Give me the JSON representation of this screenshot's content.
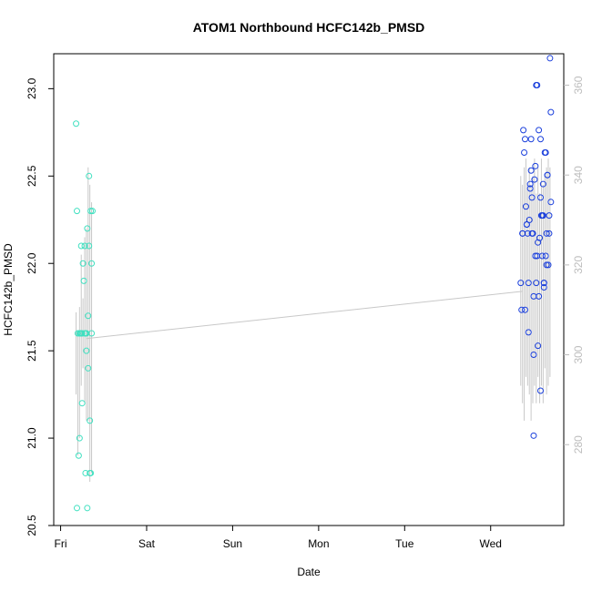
{
  "chart_data": {
    "type": "scatter",
    "title": "ATOM1 Northbound HCFC142b_PMSD",
    "xlabel": "Date",
    "ylabel": "HCFC142b_PMSD",
    "x_ticks": [
      "Fri",
      "Sat",
      "Sun",
      "Mon",
      "Tue",
      "Wed"
    ],
    "xlim": [
      -0.08,
      5.85
    ],
    "ylim": [
      20.5,
      23.2
    ],
    "y_ticks": [
      20.5,
      21.0,
      21.5,
      22.0,
      22.5,
      23.0
    ],
    "y2_ticks": [
      280,
      300,
      320,
      340,
      360
    ],
    "y2lim": [
      262,
      367
    ],
    "grid": false,
    "colors": {
      "series_early": "#40e0c0",
      "series_late": "#1a3fdc",
      "trend": "#c8c8c8",
      "right_axis": "#bdbdbd"
    },
    "series": [
      {
        "x": [
          0.18,
          0.19,
          0.2,
          0.21,
          0.22,
          0.23,
          0.24,
          0.25,
          0.26,
          0.27,
          0.28,
          0.29,
          0.3,
          0.31,
          0.32,
          0.33,
          0.34,
          0.19,
          0.22,
          0.25,
          0.28,
          0.31
        ],
        "y": [
          22.8,
          22.3,
          21.6,
          20.9,
          21.0,
          21.6,
          22.1,
          21.2,
          22.0,
          21.9,
          22.1,
          21.6,
          21.5,
          22.2,
          21.4,
          22.1,
          20.8,
          20.6,
          21.6,
          21.6,
          21.6,
          20.6
        ]
      },
      {
        "x": [
          0.24,
          0.3,
          0.33,
          0.35,
          0.36,
          0.32,
          0.29
        ],
        "y": [
          21.6,
          21.6,
          22.5,
          22.3,
          22.0,
          21.7,
          20.8
        ]
      },
      {
        "x": [
          0.34,
          0.35,
          0.36,
          0.37
        ],
        "y": [
          21.1,
          20.8,
          21.6,
          22.3
        ]
      },
      {
        "x": [
          5.35,
          5.36,
          5.37,
          5.38,
          5.39,
          5.4,
          5.41,
          5.42,
          5.43,
          5.44,
          5.45,
          5.46,
          5.47,
          5.48,
          5.49,
          5.5,
          5.51,
          5.52,
          5.53,
          5.54,
          5.55,
          5.56,
          5.57,
          5.58,
          5.59,
          5.6,
          5.61,
          5.62,
          5.63,
          5.64,
          5.65,
          5.66,
          5.67,
          5.68,
          5.69,
          5.7
        ],
        "y": [
          316,
          310,
          327,
          350,
          345,
          348,
          333,
          329,
          327,
          305,
          330,
          338,
          348,
          335,
          327,
          300,
          339,
          342,
          316,
          322,
          302,
          350,
          326,
          335,
          331,
          322,
          338,
          316,
          345,
          322,
          327,
          340,
          320,
          327,
          366,
          334
        ]
      },
      {
        "x": [
          5.37,
          5.4,
          5.42,
          5.44,
          5.46,
          5.48,
          5.5,
          5.52,
          5.54,
          5.56,
          5.58,
          5.6,
          5.62,
          5.64,
          5.66,
          5.68,
          5.7,
          5.47,
          5.53,
          5.58,
          5.61
        ],
        "y": [
          327,
          310,
          329,
          316,
          337,
          327,
          282,
          322,
          360,
          313,
          292,
          331,
          316,
          345,
          340,
          331,
          354,
          341,
          360,
          348,
          331
        ]
      },
      {
        "x": [
          5.5,
          5.55,
          5.62,
          5.65
        ],
        "y": [
          313,
          325,
          315,
          320
        ]
      }
    ],
    "trend_line": {
      "x_start": 0.3,
      "x_end": 5.37,
      "y_start": 21.57,
      "y_end": 21.84
    },
    "vertical_ranges": [
      [
        0.18,
        21.25,
        21.72
      ],
      [
        0.2,
        20.9,
        21.6
      ],
      [
        0.22,
        21.0,
        21.75
      ],
      [
        0.24,
        21.3,
        22.05
      ],
      [
        0.26,
        21.4,
        21.8
      ],
      [
        0.28,
        21.2,
        22.15
      ],
      [
        0.3,
        21.1,
        22.2
      ],
      [
        0.32,
        21.1,
        22.55
      ],
      [
        0.34,
        20.75,
        22.45
      ],
      [
        0.36,
        20.8,
        22.35
      ],
      [
        5.35,
        21.3,
        22.5
      ],
      [
        5.37,
        21.2,
        22.45
      ],
      [
        5.39,
        21.1,
        22.55
      ],
      [
        5.41,
        21.35,
        22.6
      ],
      [
        5.43,
        21.3,
        22.45
      ],
      [
        5.45,
        21.25,
        22.55
      ],
      [
        5.47,
        21.1,
        22.45
      ],
      [
        5.49,
        21.2,
        22.5
      ],
      [
        5.51,
        21.3,
        22.6
      ],
      [
        5.53,
        21.2,
        22.4
      ],
      [
        5.55,
        21.35,
        22.55
      ],
      [
        5.57,
        21.2,
        22.4
      ],
      [
        5.59,
        21.3,
        22.6
      ],
      [
        5.61,
        21.2,
        22.45
      ],
      [
        5.63,
        21.4,
        22.5
      ],
      [
        5.65,
        21.25,
        22.55
      ],
      [
        5.67,
        21.3,
        22.6
      ],
      [
        5.69,
        21.35,
        22.55
      ]
    ]
  }
}
